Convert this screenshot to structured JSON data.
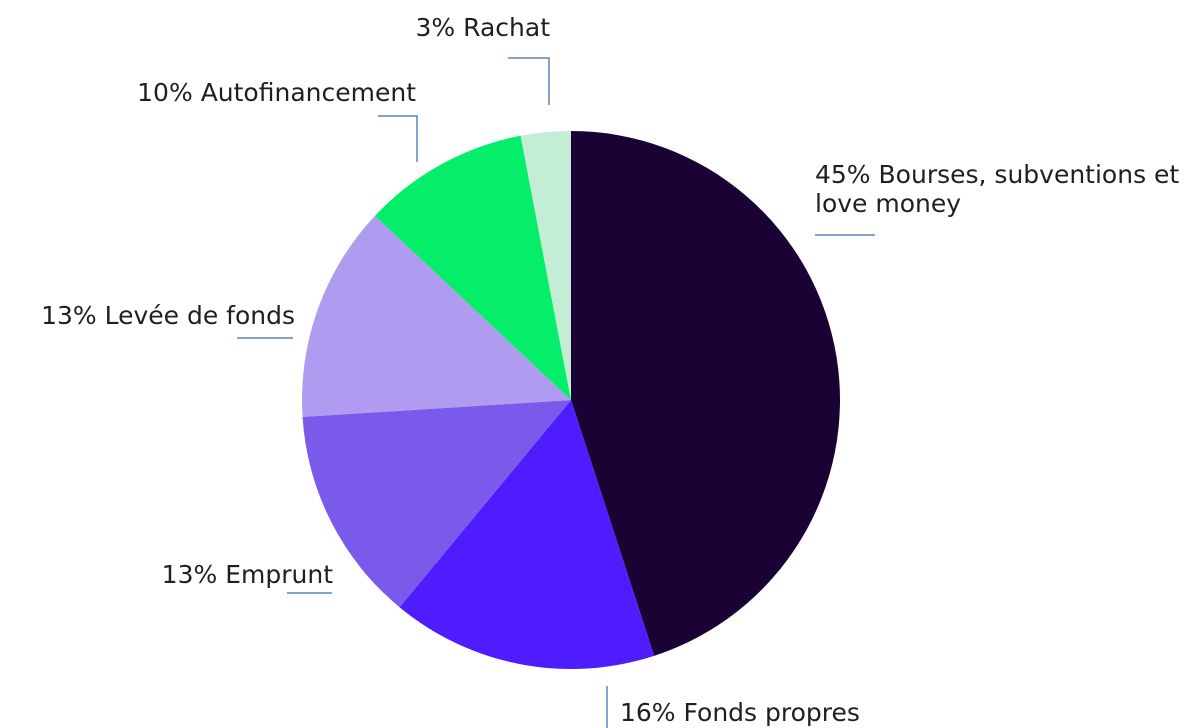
{
  "chart_data": {
    "type": "pie",
    "categories": [
      "Bourses, subventions et love money",
      "Fonds propres",
      "Emprunt",
      "Levée de fonds",
      "Autofinancement",
      "Rachat"
    ],
    "values": [
      45,
      16,
      13,
      13,
      10,
      3
    ],
    "value_labels": [
      "45%",
      "16%",
      "13%",
      "13%",
      "10%",
      "3%"
    ],
    "colors": [
      "#1a0235",
      "#4f1cff",
      "#7a5aea",
      "#af9cf1",
      "#04ee6a",
      "#c3eed5"
    ],
    "start_angle": 0,
    "direction": "clockwise"
  }
}
